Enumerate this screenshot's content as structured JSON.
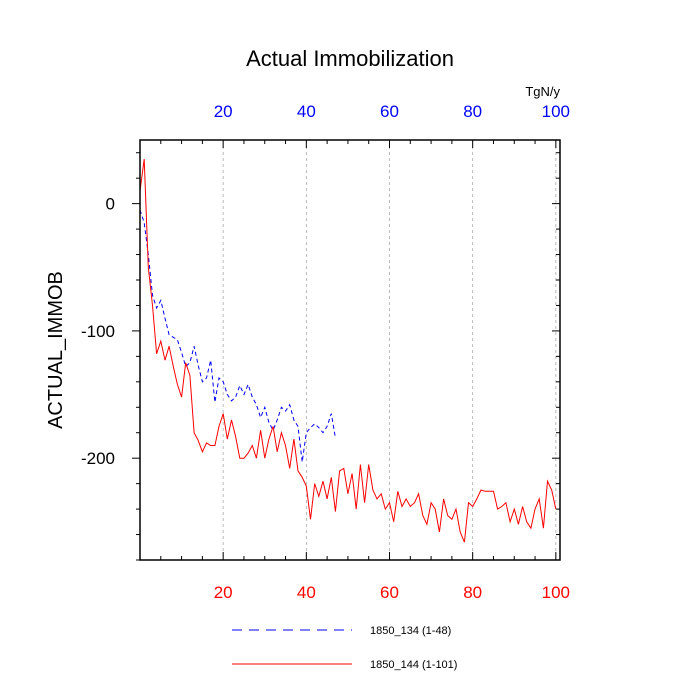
{
  "chart_data": {
    "type": "line",
    "title": "Actual Immobilization",
    "ylabel": "ACTUAL_IMMOB",
    "units": "TgN/y",
    "xlim": [
      0,
      101
    ],
    "ylim": [
      -280,
      50
    ],
    "grid": "vertical dashed at bottom x ticks",
    "x_ticks_bottom": [
      20,
      40,
      60,
      80,
      100
    ],
    "x_ticks_top": [
      20,
      40,
      60,
      80,
      100
    ],
    "y_ticks": [
      0,
      -100,
      -200
    ],
    "axis_colors": {
      "bottom": "#ff0000",
      "top": "#0000ff",
      "left": "#000000"
    },
    "series": [
      {
        "name": "1850_134 (1-48)",
        "color": "#0000ff",
        "dash": "dashed",
        "x_start": 0,
        "values": [
          -5,
          -15,
          -40,
          -72,
          -82,
          -76,
          -90,
          -103,
          -105,
          -107,
          -117,
          -128,
          -125,
          -112,
          -127,
          -140,
          -137,
          -123,
          -156,
          -137,
          -140,
          -150,
          -155,
          -152,
          -143,
          -150,
          -142,
          -152,
          -158,
          -168,
          -160,
          -172,
          -178,
          -170,
          -160,
          -163,
          -158,
          -170,
          -175,
          -203,
          -180,
          -176,
          -173,
          -176,
          -180,
          -175,
          -165,
          -184
        ]
      },
      {
        "name": "1850_144 (1-101)",
        "color": "#ff0000",
        "dash": "solid",
        "x_start": 0,
        "values": [
          10,
          35,
          -50,
          -80,
          -118,
          -108,
          -123,
          -112,
          -128,
          -142,
          -152,
          -125,
          -135,
          -180,
          -186,
          -195,
          -188,
          -190,
          -190,
          -175,
          -165,
          -185,
          -170,
          -183,
          -200,
          -200,
          -196,
          -190,
          -200,
          -178,
          -200,
          -185,
          -175,
          -195,
          -180,
          -190,
          -208,
          -185,
          -210,
          -215,
          -222,
          -248,
          -220,
          -230,
          -218,
          -232,
          -215,
          -242,
          -210,
          -208,
          -228,
          -212,
          -240,
          -205,
          -235,
          -205,
          -225,
          -232,
          -228,
          -240,
          -235,
          -250,
          -226,
          -238,
          -232,
          -238,
          -235,
          -228,
          -245,
          -252,
          -235,
          -240,
          -258,
          -232,
          -245,
          -248,
          -240,
          -258,
          -266,
          -235,
          -238,
          -232,
          -225,
          -226,
          -226,
          -226,
          -240,
          -238,
          -235,
          -250,
          -240,
          -252,
          -238,
          -250,
          -255,
          -240,
          -232,
          -255,
          -218,
          -225,
          -240
        ]
      }
    ]
  }
}
